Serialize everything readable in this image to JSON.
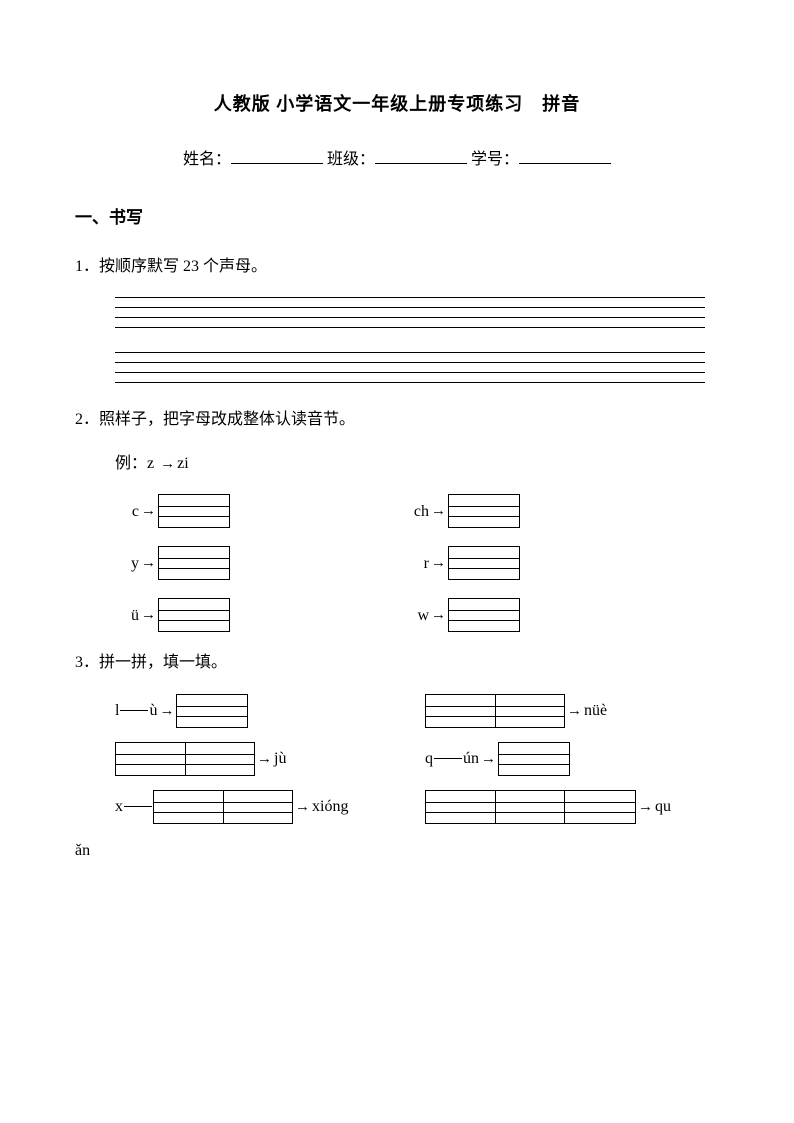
{
  "title": "人教版 小学语文一年级上册专项练习　拼音",
  "info": {
    "name_label": "姓名：",
    "class_label": "班级：",
    "id_label": "学号："
  },
  "section1": {
    "header": "一、书写"
  },
  "q1": {
    "text": "1．按顺序默写 23 个声母。"
  },
  "q2": {
    "text": "2．照样子，把字母改成整体认读音节。",
    "example_prefix": "例：",
    "example_from": "z",
    "example_to": "zi",
    "items": [
      {
        "left": "c",
        "right": "ch"
      },
      {
        "left": "y",
        "right": "r"
      },
      {
        "left": "ü",
        "right": "w"
      }
    ]
  },
  "q3": {
    "text": "3．拼一拼，填一填。",
    "row1": {
      "l1": "l",
      "l2": "ù",
      "r_out": "nüè"
    },
    "row2": {
      "l_out": "jù",
      "r1": "q",
      "r2": "ún"
    },
    "row3": {
      "l1": "x",
      "l_out": "xióng",
      "r_out": "qu"
    },
    "tail": "ǎn"
  },
  "arrow": "→"
}
